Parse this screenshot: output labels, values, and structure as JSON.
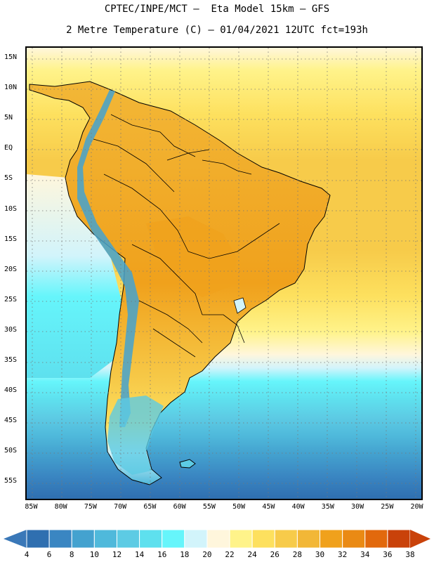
{
  "title": {
    "line1": "CPTEC/INPE/MCT –  Eta Model 15km – GFS",
    "line2": "2 Metre Temperature (C) – 01/04/2021 12UTC fct=193h"
  },
  "axes": {
    "lat_labels": [
      "15N",
      "10N",
      "5N",
      "EQ",
      "5S",
      "10S",
      "15S",
      "20S",
      "25S",
      "30S",
      "35S",
      "40S",
      "45S",
      "50S",
      "55S"
    ],
    "lon_labels": [
      "85W",
      "80W",
      "75W",
      "70W",
      "65W",
      "60W",
      "55W",
      "50W",
      "45W",
      "40W",
      "35W",
      "30W",
      "25W",
      "20W"
    ]
  },
  "map_extent": {
    "lon_min": -86,
    "lon_max": -19,
    "lat_min": -58,
    "lat_max": 17
  },
  "colorbar": {
    "labels": [
      "4",
      "6",
      "8",
      "10",
      "12",
      "14",
      "16",
      "18",
      "20",
      "22",
      "24",
      "26",
      "28",
      "30",
      "32",
      "34",
      "36",
      "38"
    ],
    "colors": [
      "#2f6fb0",
      "#3a86c2",
      "#44a2cf",
      "#4fb9db",
      "#5dcbe4",
      "#5ee0ee",
      "#66f5fb",
      "#d2f4fb",
      "#fff6dc",
      "#fff38a",
      "#fde05e",
      "#f7cb4a",
      "#f2b737",
      "#f0a11c",
      "#ea8a14",
      "#e2690d",
      "#c9420a"
    ],
    "under_color": "#3a78b8",
    "over_color": "#c9420a"
  },
  "icons": {
    "under_arrow": "triangle-left-icon",
    "over_arrow": "triangle-right-icon"
  }
}
